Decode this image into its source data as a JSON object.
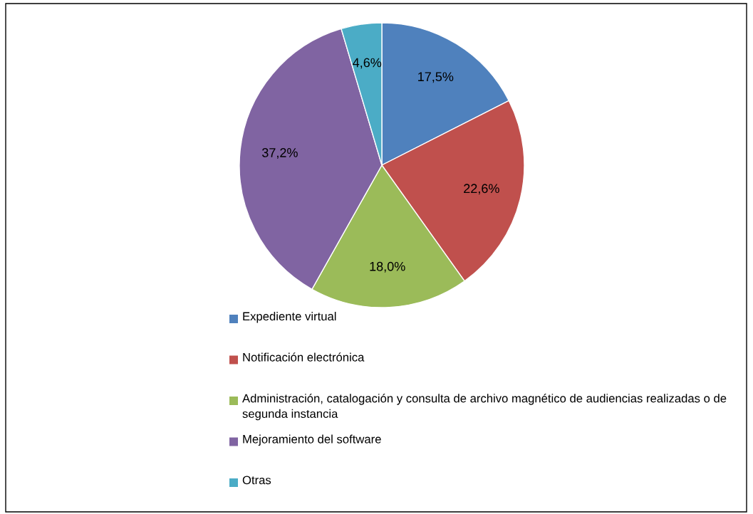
{
  "chart_data": {
    "type": "pie",
    "categories": [
      "Expediente virtual",
      "Notificación electrónica",
      "Administración, catalogación y consulta de archivo magnético de audiencias realizadas o de segunda instancia",
      "Mejoramiento del software",
      "Otras"
    ],
    "values": [
      17.5,
      22.6,
      18.0,
      37.2,
      4.6
    ],
    "colors": [
      "#4f81bd",
      "#c0504d",
      "#9bbb59",
      "#8064a2",
      "#4bacc6"
    ],
    "value_labels": [
      "17,5%",
      "22,6%",
      "18,0%",
      "37,2%",
      "4,6%"
    ],
    "legend": "bottom"
  }
}
